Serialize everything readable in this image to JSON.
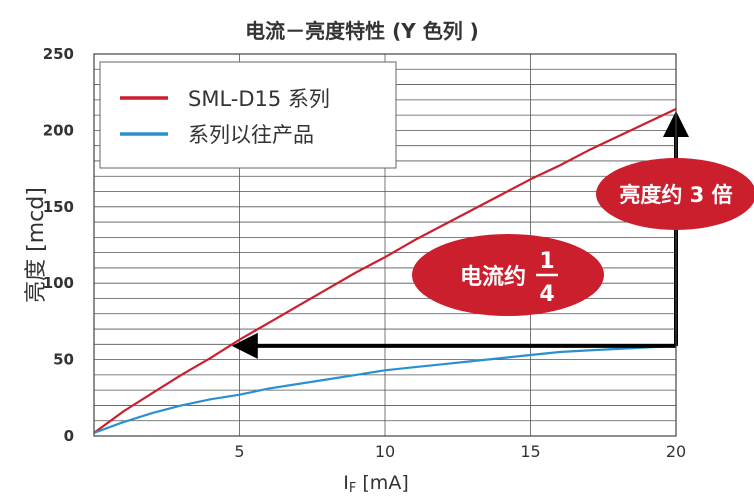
{
  "chart_data": {
    "type": "line",
    "title": "电流－亮度特性 (Y 色列 )",
    "xlabel": {
      "main": "I",
      "sub": "F",
      "unit": " [mA]"
    },
    "ylabel": "亮度 [mcd]",
    "xlim": [
      0,
      20
    ],
    "ylim": [
      0,
      250
    ],
    "x_ticks": [
      "5",
      "10",
      "15",
      "20"
    ],
    "y_ticks": [
      "0",
      "50",
      "100",
      "150",
      "200",
      "250"
    ],
    "grid": true,
    "legend_position": "top-left",
    "series": [
      {
        "name": "SML-D15 系列",
        "color": "#cc1f2e",
        "x": [
          0,
          1,
          2,
          3,
          4,
          5,
          6,
          7,
          8,
          9,
          10,
          11,
          12,
          13,
          14,
          15,
          16,
          17,
          18,
          19,
          20
        ],
        "y": [
          2,
          16,
          28,
          40,
          51,
          63,
          74,
          85,
          96,
          107,
          117,
          128,
          138,
          148,
          158,
          168,
          177,
          187,
          196,
          205,
          214
        ]
      },
      {
        "name": "系列以往产品",
        "color": "#2c90cf",
        "x": [
          0,
          1,
          2,
          3,
          4,
          5,
          6,
          7,
          8,
          9,
          10,
          11,
          12,
          13,
          14,
          15,
          16,
          17,
          18,
          19,
          20
        ],
        "y": [
          2,
          9,
          15,
          20,
          24,
          27,
          31,
          34,
          37,
          40,
          43,
          45,
          47,
          49,
          51,
          53,
          55,
          56,
          57,
          58,
          59
        ]
      }
    ],
    "annotations": {
      "brightness": "亮度约 3 倍",
      "current_prefix": "电流约",
      "current_num": "1",
      "current_den": "4"
    }
  },
  "colors": {
    "red": "#cc1f2e",
    "blue": "#2c90cf",
    "grid": "#555555",
    "arrow": "#000000"
  }
}
